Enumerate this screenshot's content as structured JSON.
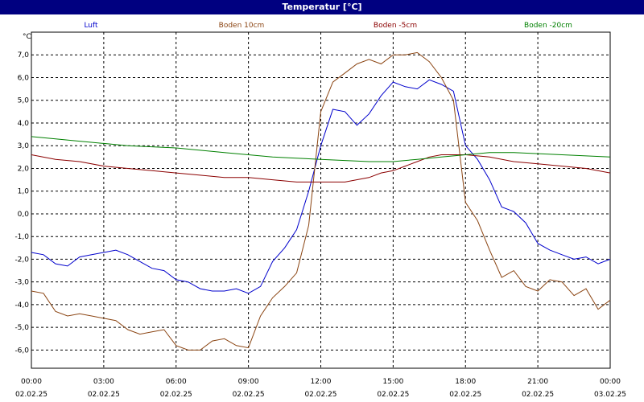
{
  "window": {
    "title": "Temperatur [°C]"
  },
  "chart_data": {
    "type": "line",
    "title": "Temperatur [°C]",
    "ylabel": "°C",
    "xlabel": "",
    "xlim": [
      0,
      24
    ],
    "ylim": [
      -6.8,
      8.0
    ],
    "grid": true,
    "legend": "top",
    "yticks": [
      7.0,
      6.0,
      5.0,
      4.0,
      3.0,
      2.0,
      1.0,
      0.0,
      -1.0,
      -2.0,
      -3.0,
      -4.0,
      -5.0,
      -6.0
    ],
    "ytick_labels": [
      "7,0",
      "6,0",
      "5,0",
      "4,0",
      "3,0",
      "2,0",
      "1,0",
      "0,0",
      "-1,0",
      "-2,0",
      "-3,0",
      "-4,0",
      "-5,0",
      "-6,0"
    ],
    "xticks": [
      {
        "hour": 0,
        "time": "00:00",
        "date": "02.02.25"
      },
      {
        "hour": 3,
        "time": "03:00",
        "date": "02.02.25"
      },
      {
        "hour": 6,
        "time": "06:00",
        "date": "02.02.25"
      },
      {
        "hour": 9,
        "time": "09:00",
        "date": "02.02.25"
      },
      {
        "hour": 12,
        "time": "12:00",
        "date": "02.02.25"
      },
      {
        "hour": 15,
        "time": "15:00",
        "date": "02.02.25"
      },
      {
        "hour": 18,
        "time": "18:00",
        "date": "02.02.25"
      },
      {
        "hour": 21,
        "time": "21:00",
        "date": "02.02.25"
      },
      {
        "hour": 24,
        "time": "00:00",
        "date": "03.02.25"
      }
    ],
    "series": [
      {
        "name": "Luft",
        "color": "#0000cc",
        "x": [
          0,
          0.5,
          1,
          1.5,
          2,
          2.5,
          3,
          3.5,
          4,
          4.5,
          5,
          5.5,
          6,
          6.5,
          7,
          7.5,
          8,
          8.5,
          9,
          9.5,
          10,
          10.5,
          11,
          11.5,
          12,
          12.5,
          13,
          13.5,
          14,
          14.5,
          15,
          15.5,
          16,
          16.5,
          17,
          17.5,
          18,
          18.5,
          19,
          19.5,
          20,
          20.5,
          21,
          21.5,
          22,
          22.5,
          23,
          23.5,
          24
        ],
        "values": [
          -1.7,
          -1.8,
          -2.2,
          -2.3,
          -1.9,
          -1.8,
          -1.7,
          -1.6,
          -1.8,
          -2.1,
          -2.4,
          -2.5,
          -2.9,
          -3.0,
          -3.3,
          -3.4,
          -3.4,
          -3.3,
          -3.5,
          -3.2,
          -2.1,
          -1.5,
          -0.7,
          1.0,
          3.0,
          4.6,
          4.5,
          3.9,
          4.4,
          5.2,
          5.8,
          5.6,
          5.5,
          5.9,
          5.7,
          5.4,
          3.0,
          2.4,
          1.5,
          0.3,
          0.1,
          -0.4,
          -1.3,
          -1.6,
          -1.8,
          -2.0,
          -1.9,
          -2.2,
          -2.0
        ]
      },
      {
        "name": "Boden 10cm",
        "color": "#8b4513",
        "x": [
          0,
          0.5,
          1,
          1.5,
          2,
          2.5,
          3,
          3.5,
          4,
          4.5,
          5,
          5.5,
          6,
          6.5,
          7,
          7.5,
          8,
          8.5,
          9,
          9.5,
          10,
          10.5,
          11,
          11.5,
          12,
          12.5,
          13,
          13.5,
          14,
          14.5,
          15,
          15.5,
          16,
          16.5,
          17,
          17.5,
          18,
          18.5,
          19,
          19.5,
          20,
          20.5,
          21,
          21.5,
          22,
          22.5,
          23,
          23.5,
          24
        ],
        "values": [
          -3.4,
          -3.5,
          -4.3,
          -4.5,
          -4.4,
          -4.5,
          -4.6,
          -4.7,
          -5.1,
          -5.3,
          -5.2,
          -5.1,
          -5.8,
          -6.0,
          -6.0,
          -5.6,
          -5.5,
          -5.8,
          -5.9,
          -4.5,
          -3.7,
          -3.2,
          -2.6,
          -0.5,
          4.5,
          5.8,
          6.2,
          6.6,
          6.8,
          6.6,
          7.0,
          7.0,
          7.1,
          6.7,
          6.0,
          5.0,
          0.5,
          -0.3,
          -1.6,
          -2.8,
          -2.5,
          -3.2,
          -3.4,
          -2.9,
          -3.0,
          -3.6,
          -3.3,
          -4.2,
          -3.8
        ]
      },
      {
        "name": "Boden -5cm",
        "color": "#8b0000",
        "x": [
          0,
          1,
          2,
          3,
          4,
          5,
          6,
          7,
          8,
          9,
          10,
          11,
          12,
          13,
          14,
          14.5,
          15,
          15.5,
          16,
          16.5,
          17,
          18,
          19,
          20,
          21,
          22,
          23,
          24
        ],
        "values": [
          2.6,
          2.4,
          2.3,
          2.1,
          2.0,
          1.9,
          1.8,
          1.7,
          1.6,
          1.6,
          1.5,
          1.4,
          1.4,
          1.4,
          1.6,
          1.8,
          1.9,
          2.1,
          2.3,
          2.5,
          2.6,
          2.6,
          2.5,
          2.3,
          2.2,
          2.1,
          2.0,
          1.8
        ]
      },
      {
        "name": "Boden -20cm",
        "color": "#008000",
        "x": [
          0,
          1,
          2,
          3,
          4,
          5,
          6,
          7,
          8,
          9,
          10,
          11,
          12,
          13,
          14,
          15,
          16,
          17,
          18,
          19,
          20,
          21,
          22,
          23,
          24
        ],
        "values": [
          3.4,
          3.3,
          3.2,
          3.1,
          3.0,
          2.95,
          2.9,
          2.8,
          2.7,
          2.6,
          2.5,
          2.45,
          2.4,
          2.35,
          2.3,
          2.3,
          2.4,
          2.5,
          2.6,
          2.7,
          2.7,
          2.65,
          2.6,
          2.55,
          2.5
        ]
      }
    ]
  }
}
